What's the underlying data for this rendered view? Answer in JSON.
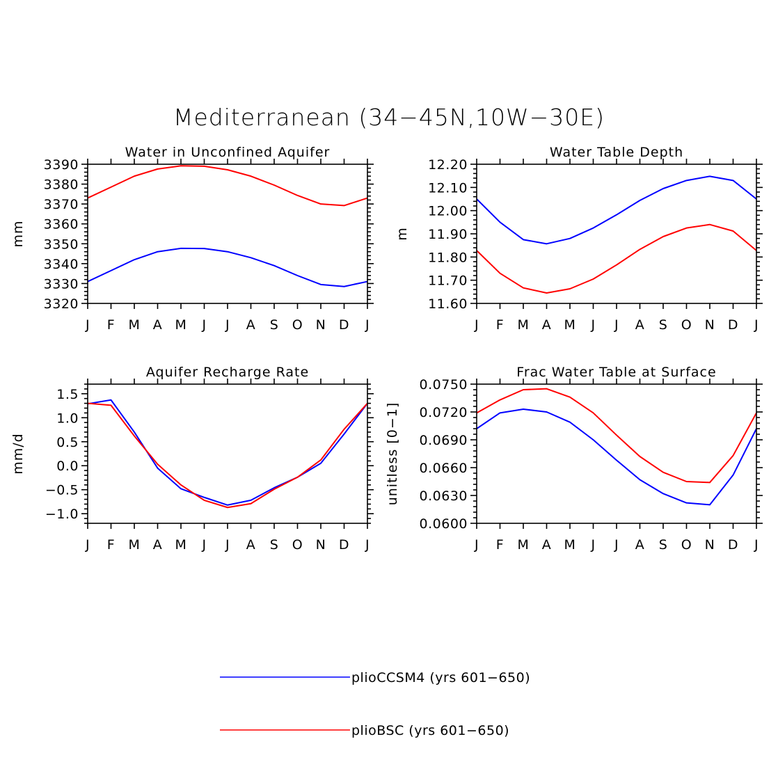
{
  "figure_title": "Mediterranean (34−45N,10W−30E)",
  "colors": {
    "plioCCSM4": "#0000ff",
    "plioBSC": "#ff0000"
  },
  "legend": [
    {
      "key": "plioCCSM4",
      "label": "plioCCSM4 (yrs 601−650)"
    },
    {
      "key": "plioBSC",
      "label": "plioBSC (yrs 601−650)"
    }
  ],
  "chart_data": [
    {
      "type": "line",
      "title": "Water in Unconfined Aquifer",
      "ylabel": "mm",
      "xlabel": "",
      "categories": [
        "J",
        "F",
        "M",
        "A",
        "M",
        "J",
        "J",
        "A",
        "S",
        "O",
        "N",
        "D",
        "J"
      ],
      "ylim": [
        3320,
        3390
      ],
      "yticks": [
        "3320",
        "3330",
        "3340",
        "3350",
        "3360",
        "3370",
        "3380",
        "3390"
      ],
      "series": [
        {
          "name": "plioCCSM4",
          "values": [
            3331,
            3336.5,
            3342,
            3346,
            3347.7,
            3347.6,
            3346,
            3343,
            3339,
            3334,
            3329.5,
            3328.5,
            3331
          ]
        },
        {
          "name": "plioBSC",
          "values": [
            3373,
            3378.5,
            3384,
            3387.6,
            3389.2,
            3389,
            3387.2,
            3384,
            3379.5,
            3374.3,
            3370,
            3369.2,
            3373
          ]
        }
      ]
    },
    {
      "type": "line",
      "title": "Water Table Depth",
      "ylabel": "m",
      "xlabel": "",
      "categories": [
        "J",
        "F",
        "M",
        "A",
        "M",
        "J",
        "J",
        "A",
        "S",
        "O",
        "N",
        "D",
        "J"
      ],
      "ylim": [
        11.6,
        12.2
      ],
      "yticks": [
        "11.60",
        "11.70",
        "11.80",
        "11.90",
        "12.00",
        "12.10",
        "12.20"
      ],
      "series": [
        {
          "name": "plioCCSM4",
          "values": [
            12.05,
            11.95,
            11.875,
            11.857,
            11.88,
            11.925,
            11.982,
            12.044,
            12.095,
            12.13,
            12.148,
            12.13,
            12.05
          ]
        },
        {
          "name": "plioBSC",
          "values": [
            11.828,
            11.73,
            11.667,
            11.645,
            11.663,
            11.705,
            11.766,
            11.833,
            11.888,
            11.925,
            11.94,
            11.912,
            11.828
          ]
        }
      ]
    },
    {
      "type": "line",
      "title": "Aquifer Recharge Rate",
      "ylabel": "mm/d",
      "xlabel": "",
      "categories": [
        "J",
        "F",
        "M",
        "A",
        "M",
        "J",
        "J",
        "A",
        "S",
        "O",
        "N",
        "D",
        "J"
      ],
      "ylim": [
        -1.2,
        1.7
      ],
      "yticks": [
        "−1.0",
        "−0.5",
        "0.0",
        "0.5",
        "1.0",
        "1.5"
      ],
      "ytick_values": [
        -1.0,
        -0.5,
        0.0,
        0.5,
        1.0,
        1.5
      ],
      "series": [
        {
          "name": "plioCCSM4",
          "values": [
            1.29,
            1.37,
            0.7,
            -0.05,
            -0.48,
            -0.66,
            -0.82,
            -0.72,
            -0.46,
            -0.24,
            0.05,
            0.66,
            1.3
          ]
        },
        {
          "name": "plioBSC",
          "values": [
            1.3,
            1.26,
            0.62,
            0.03,
            -0.4,
            -0.72,
            -0.87,
            -0.79,
            -0.49,
            -0.24,
            0.12,
            0.76,
            1.3
          ]
        }
      ]
    },
    {
      "type": "line",
      "title": "Frac Water Table at Surface",
      "ylabel": "unitless [0−1]",
      "xlabel": "",
      "categories": [
        "J",
        "F",
        "M",
        "A",
        "M",
        "J",
        "J",
        "A",
        "S",
        "O",
        "N",
        "D",
        "J"
      ],
      "ylim": [
        0.06,
        0.075
      ],
      "yticks": [
        "0.0600",
        "0.0630",
        "0.0660",
        "0.0690",
        "0.0720",
        "0.0750"
      ],
      "series": [
        {
          "name": "plioCCSM4",
          "values": [
            0.0702,
            0.0719,
            0.0723,
            0.072,
            0.0709,
            0.069,
            0.0668,
            0.0647,
            0.0632,
            0.0622,
            0.062,
            0.0652,
            0.0702
          ]
        },
        {
          "name": "plioBSC",
          "values": [
            0.0719,
            0.0733,
            0.0744,
            0.0745,
            0.0736,
            0.0719,
            0.0695,
            0.0672,
            0.0655,
            0.0645,
            0.0644,
            0.0673,
            0.0719
          ]
        }
      ]
    }
  ]
}
